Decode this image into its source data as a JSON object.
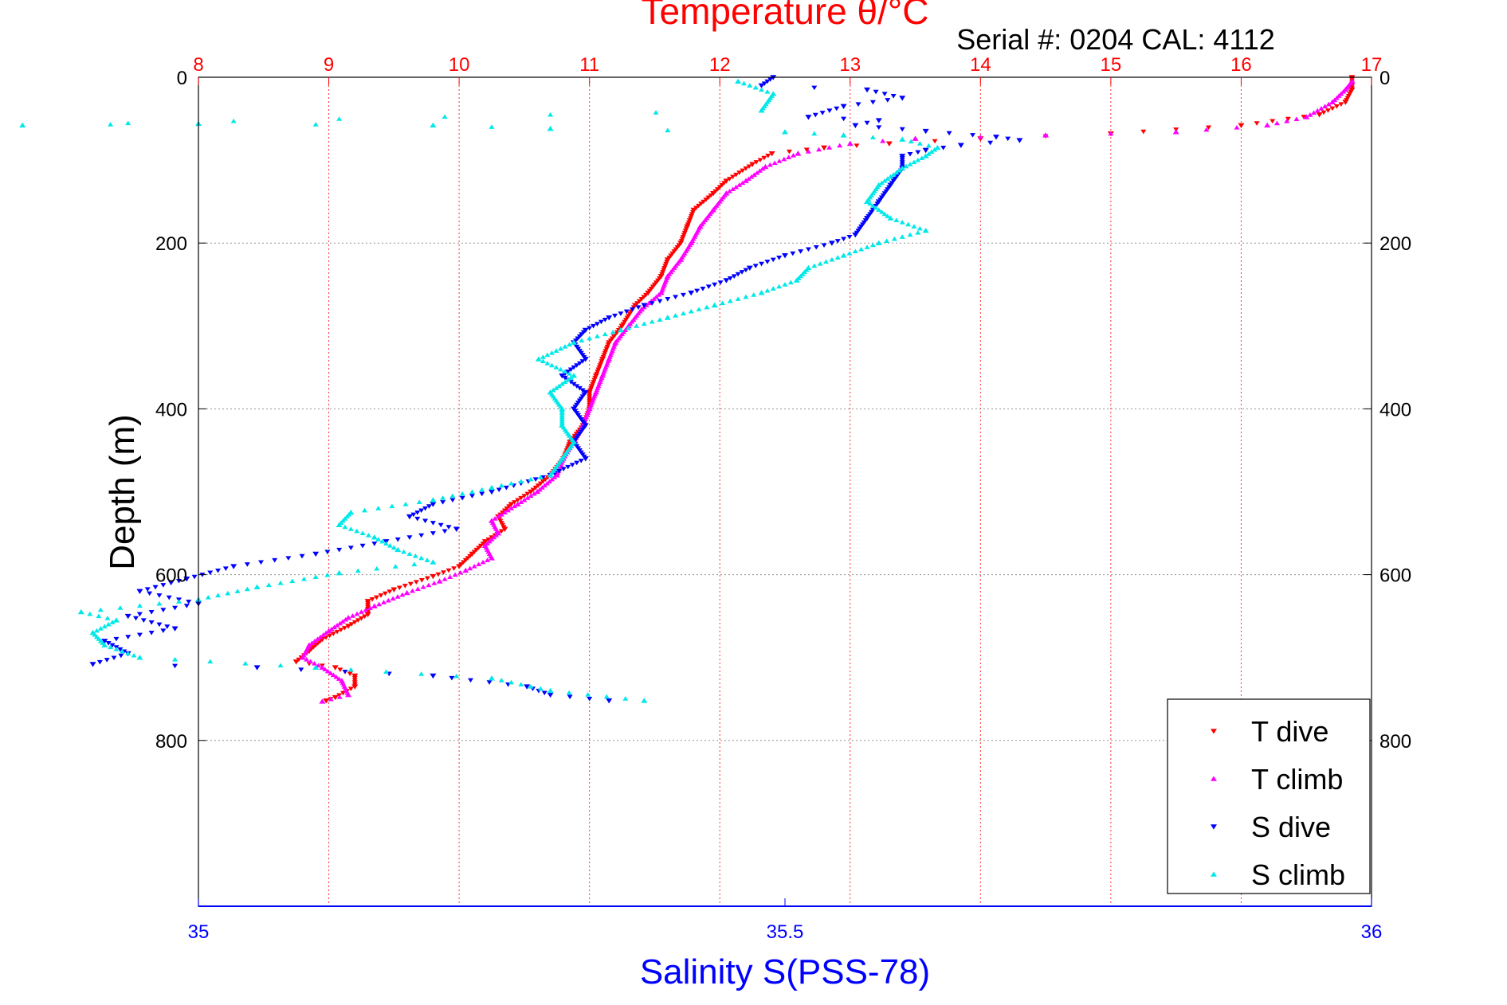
{
  "chart_data": {
    "type": "scatter",
    "title": "Temperature θ/°C",
    "subtitle": "Serial #: 0204  CAL: 4112",
    "xlabel_top": "Temperature θ/°C",
    "xlabel_bottom": "Salinity S(PSS-78)",
    "ylabel": "Depth (m)",
    "ylim": [
      0,
      1000
    ],
    "y_reversed": true,
    "y_ticks": [
      0,
      200,
      400,
      600,
      800
    ],
    "temperature_axis": {
      "lim": [
        8,
        17
      ],
      "ticks": [
        8,
        9,
        10,
        11,
        12,
        13,
        14,
        15,
        16,
        17
      ]
    },
    "salinity_axis": {
      "lim": [
        35,
        36
      ],
      "ticks": [
        35,
        35.5,
        36
      ],
      "tick_labels": [
        "35",
        "35.5",
        "36"
      ]
    },
    "grid": true,
    "legend_position": "bottom-right",
    "colors": {
      "temp_axis": "#ff0000",
      "sal_axis": "#0000ff",
      "grid": "#bbbbbb"
    },
    "series": [
      {
        "name": "T dive",
        "axis": "temperature",
        "color": "#ff0000",
        "marker": "triangle-down",
        "points": [
          [
            16.85,
            0
          ],
          [
            16.85,
            15
          ],
          [
            16.8,
            30
          ],
          [
            16.6,
            45
          ],
          [
            16.0,
            58
          ],
          [
            15.0,
            68
          ],
          [
            14.0,
            74
          ],
          [
            13.3,
            80
          ],
          [
            12.8,
            85
          ],
          [
            12.4,
            92
          ],
          [
            12.25,
            105
          ],
          [
            12.05,
            125
          ],
          [
            11.95,
            140
          ],
          [
            11.8,
            160
          ],
          [
            11.75,
            180
          ],
          [
            11.7,
            200
          ],
          [
            11.6,
            220
          ],
          [
            11.55,
            240
          ],
          [
            11.45,
            260
          ],
          [
            11.35,
            275
          ],
          [
            11.25,
            300
          ],
          [
            11.15,
            320
          ],
          [
            11.1,
            340
          ],
          [
            11.05,
            360
          ],
          [
            11.0,
            380
          ],
          [
            11.0,
            400
          ],
          [
            10.95,
            420
          ],
          [
            10.85,
            440
          ],
          [
            10.8,
            460
          ],
          [
            10.7,
            480
          ],
          [
            10.55,
            500
          ],
          [
            10.4,
            515
          ],
          [
            10.3,
            530
          ],
          [
            10.35,
            545
          ],
          [
            10.2,
            560
          ],
          [
            10.1,
            575
          ],
          [
            10.0,
            590
          ],
          [
            9.8,
            602
          ],
          [
            9.5,
            618
          ],
          [
            9.3,
            632
          ],
          [
            9.3,
            648
          ],
          [
            9.15,
            662
          ],
          [
            8.95,
            678
          ],
          [
            8.85,
            692
          ],
          [
            8.75,
            705
          ],
          [
            9.05,
            712
          ],
          [
            9.2,
            722
          ],
          [
            9.2,
            735
          ],
          [
            9.05,
            748
          ],
          [
            8.98,
            752
          ]
        ]
      },
      {
        "name": "T climb",
        "axis": "temperature",
        "color": "#ff00ff",
        "marker": "triangle-up",
        "points": [
          [
            8.95,
            753
          ],
          [
            9.15,
            745
          ],
          [
            9.1,
            728
          ],
          [
            8.95,
            712
          ],
          [
            8.8,
            700
          ],
          [
            8.85,
            685
          ],
          [
            9.0,
            668
          ],
          [
            9.15,
            652
          ],
          [
            9.35,
            638
          ],
          [
            9.6,
            622
          ],
          [
            9.85,
            608
          ],
          [
            10.05,
            595
          ],
          [
            10.25,
            580
          ],
          [
            10.2,
            565
          ],
          [
            10.3,
            550
          ],
          [
            10.25,
            535
          ],
          [
            10.45,
            515
          ],
          [
            10.6,
            500
          ],
          [
            10.75,
            480
          ],
          [
            10.8,
            460
          ],
          [
            10.88,
            440
          ],
          [
            10.95,
            420
          ],
          [
            11.0,
            400
          ],
          [
            11.05,
            380
          ],
          [
            11.1,
            360
          ],
          [
            11.15,
            340
          ],
          [
            11.2,
            320
          ],
          [
            11.3,
            300
          ],
          [
            11.4,
            280
          ],
          [
            11.55,
            260
          ],
          [
            11.6,
            240
          ],
          [
            11.7,
            220
          ],
          [
            11.78,
            200
          ],
          [
            11.85,
            180
          ],
          [
            11.95,
            160
          ],
          [
            12.05,
            140
          ],
          [
            12.2,
            125
          ],
          [
            12.35,
            108
          ],
          [
            12.6,
            92
          ],
          [
            13.0,
            80
          ],
          [
            13.5,
            74
          ],
          [
            14.5,
            70
          ],
          [
            15.5,
            66
          ],
          [
            16.2,
            58
          ],
          [
            16.5,
            48
          ],
          [
            16.7,
            30
          ],
          [
            16.8,
            15
          ],
          [
            16.85,
            5
          ]
        ]
      },
      {
        "name": "S dive",
        "axis": "salinity",
        "color": "#0000ff",
        "marker": "triangle-down",
        "points": [
          [
            35.49,
            0
          ],
          [
            35.48,
            10
          ],
          [
            35.57,
            15
          ],
          [
            35.6,
            25
          ],
          [
            35.55,
            35
          ],
          [
            35.52,
            48
          ],
          [
            35.58,
            52
          ],
          [
            35.56,
            58
          ],
          [
            35.62,
            65
          ],
          [
            35.68,
            72
          ],
          [
            35.7,
            76
          ],
          [
            35.65,
            82
          ],
          [
            35.62,
            88
          ],
          [
            35.6,
            95
          ],
          [
            35.6,
            110
          ],
          [
            35.59,
            130
          ],
          [
            35.58,
            150
          ],
          [
            35.57,
            170
          ],
          [
            35.56,
            190
          ],
          [
            35.54,
            200
          ],
          [
            35.5,
            215
          ],
          [
            35.47,
            230
          ],
          [
            35.45,
            245
          ],
          [
            35.42,
            260
          ],
          [
            35.38,
            275
          ],
          [
            35.35,
            290
          ],
          [
            35.33,
            305
          ],
          [
            35.32,
            320
          ],
          [
            35.33,
            340
          ],
          [
            35.31,
            360
          ],
          [
            35.33,
            380
          ],
          [
            35.32,
            400
          ],
          [
            35.33,
            420
          ],
          [
            35.32,
            440
          ],
          [
            35.33,
            460
          ],
          [
            35.3,
            480
          ],
          [
            35.25,
            500
          ],
          [
            35.2,
            515
          ],
          [
            35.18,
            530
          ],
          [
            35.22,
            545
          ],
          [
            35.16,
            560
          ],
          [
            35.1,
            575
          ],
          [
            35.03,
            590
          ],
          [
            34.99,
            605
          ],
          [
            34.95,
            620
          ],
          [
            35.0,
            635
          ],
          [
            34.94,
            650
          ],
          [
            34.98,
            665
          ],
          [
            34.92,
            680
          ],
          [
            34.94,
            695
          ],
          [
            34.91,
            708
          ],
          [
            35.05,
            712
          ],
          [
            35.2,
            722
          ],
          [
            35.28,
            735
          ],
          [
            35.3,
            745
          ],
          [
            35.35,
            752
          ]
        ]
      },
      {
        "name": "S climb",
        "axis": "salinity",
        "color": "#00e8e8",
        "marker": "triangle-up",
        "points": [
          [
            35.38,
            752
          ],
          [
            35.3,
            740
          ],
          [
            35.25,
            725
          ],
          [
            35.1,
            712
          ],
          [
            34.95,
            700
          ],
          [
            34.92,
            685
          ],
          [
            34.91,
            670
          ],
          [
            34.93,
            655
          ],
          [
            34.9,
            645
          ],
          [
            35.0,
            630
          ],
          [
            35.05,
            615
          ],
          [
            35.12,
            598
          ],
          [
            35.2,
            585
          ],
          [
            35.17,
            570
          ],
          [
            35.15,
            555
          ],
          [
            35.12,
            540
          ],
          [
            35.13,
            525
          ],
          [
            35.2,
            510
          ],
          [
            35.25,
            495
          ],
          [
            35.3,
            480
          ],
          [
            35.31,
            460
          ],
          [
            35.32,
            440
          ],
          [
            35.31,
            420
          ],
          [
            35.31,
            400
          ],
          [
            35.3,
            380
          ],
          [
            35.32,
            360
          ],
          [
            35.29,
            340
          ],
          [
            35.32,
            320
          ],
          [
            35.36,
            305
          ],
          [
            35.4,
            290
          ],
          [
            35.44,
            275
          ],
          [
            35.48,
            260
          ],
          [
            35.51,
            245
          ],
          [
            35.52,
            230
          ],
          [
            35.55,
            215
          ],
          [
            35.58,
            200
          ],
          [
            35.62,
            185
          ],
          [
            35.59,
            170
          ],
          [
            35.57,
            150
          ],
          [
            35.58,
            130
          ],
          [
            35.6,
            110
          ],
          [
            35.62,
            95
          ],
          [
            35.63,
            85
          ],
          [
            35.6,
            75
          ],
          [
            35.55,
            70
          ],
          [
            35.5,
            66
          ],
          [
            35.3,
            62
          ],
          [
            35.2,
            58
          ],
          [
            35.0,
            56
          ],
          [
            34.85,
            58
          ],
          [
            35.48,
            40
          ],
          [
            35.49,
            20
          ],
          [
            35.46,
            5
          ]
        ]
      }
    ]
  }
}
